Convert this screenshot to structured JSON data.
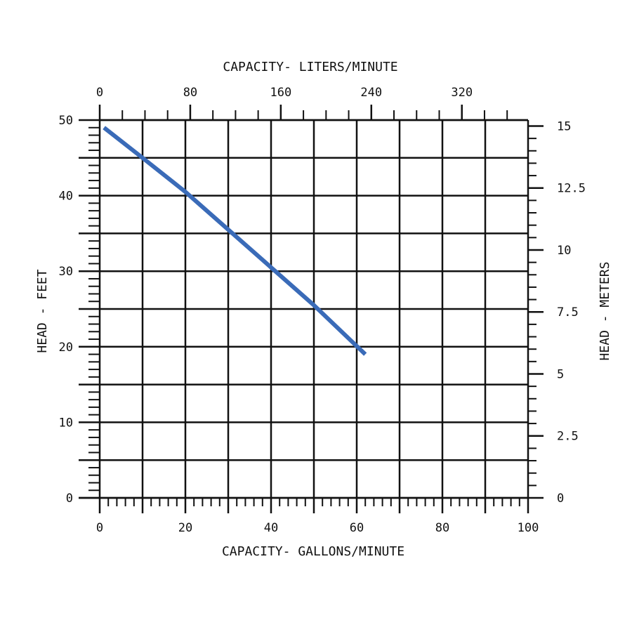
{
  "chart_data": {
    "type": "line",
    "x_axis": {
      "label": "CAPACITY- GALLONS/MINUTE",
      "range": [
        0,
        100
      ],
      "tick_labels": [
        "0",
        "20",
        "40",
        "60",
        "80",
        "100"
      ],
      "major_step": 10,
      "minor_step": 2
    },
    "x2_axis": {
      "label": "CAPACITY- LITERS/MINUTE",
      "range": [
        0,
        378.5
      ],
      "ticks": [
        0,
        80,
        160,
        240,
        320
      ],
      "tick_labels": [
        "0",
        "80",
        "160",
        "240",
        "320"
      ],
      "minor_step": 20
    },
    "y_axis": {
      "label": "HEAD - FEET",
      "range": [
        0,
        50
      ],
      "tick_labels": [
        "0",
        "10",
        "20",
        "30",
        "40",
        "50"
      ],
      "major_step": 5,
      "minor_step": 1
    },
    "y2_axis": {
      "label": "HEAD - METERS",
      "range": [
        0,
        15.24
      ],
      "ticks": [
        0,
        2.5,
        5,
        7.5,
        10,
        12.5,
        15
      ],
      "tick_labels": [
        "0",
        "2.5",
        "5",
        "7.5",
        "10",
        "12.5",
        "15"
      ],
      "minor_step": 0.5
    },
    "grid": true,
    "series": [
      {
        "color": "#3a6bb8",
        "x": [
          1,
          10,
          20,
          30,
          40,
          50,
          62
        ],
        "y": [
          49,
          45,
          40.5,
          35.5,
          30.5,
          25.5,
          19
        ]
      }
    ]
  }
}
